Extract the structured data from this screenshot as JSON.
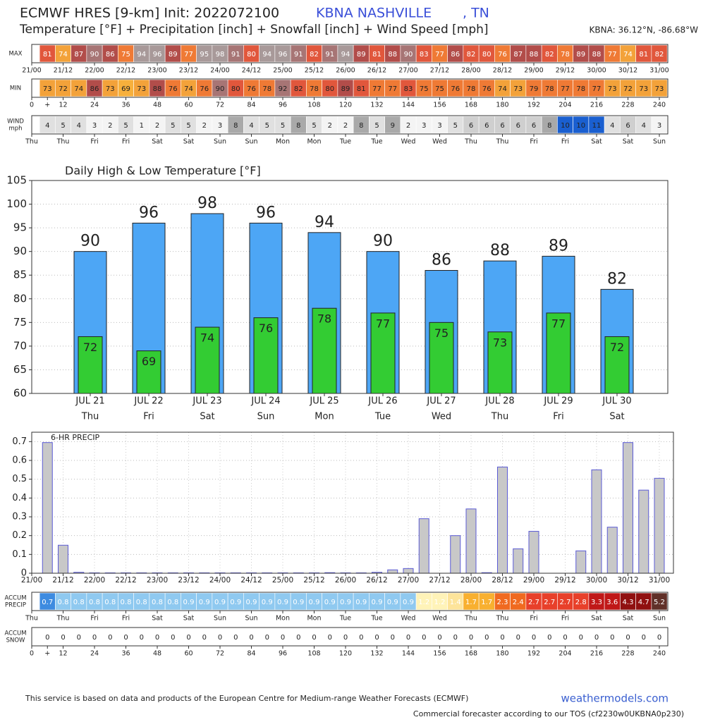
{
  "header": {
    "title": "ECMWF HRES [9-km] Init: 2022072100",
    "station": "KBNA NASHVILLE",
    "state": ", TN",
    "subtitle": "Temperature [°F] + Precipitation [inch] + Snowfall [inch] + Wind Speed [mph]",
    "location": "KBNA: 36.12°N, -86.68°W"
  },
  "chart_data": [
    {
      "type": "strip",
      "label": [
        "MAX"
      ],
      "text_color": "#ffffff",
      "values": [
        81,
        74,
        87,
        90,
        86,
        75,
        94,
        96,
        89,
        77,
        95,
        98,
        91,
        80,
        94,
        96,
        91,
        82,
        91,
        94,
        89,
        81,
        88,
        90,
        83,
        77,
        86,
        82,
        80,
        76,
        87,
        88,
        82,
        78,
        89,
        88,
        77,
        74,
        81,
        82
      ],
      "color_scale": [
        {
          "upto": 70,
          "color": "#f7b03c"
        },
        {
          "upto": 75,
          "color": "#f3a23a"
        },
        {
          "upto": 80,
          "color": "#ef7a35"
        },
        {
          "upto": 86,
          "color": "#e1573c"
        },
        {
          "upto": 90,
          "color": "#b24d4a"
        },
        {
          "upto": 93,
          "color": "#a77575"
        },
        {
          "color": "#a89999"
        }
      ],
      "xticks": [
        "21/00",
        "21/12",
        "22/00",
        "22/12",
        "23/00",
        "23/12",
        "24/00",
        "24/12",
        "25/00",
        "25/12",
        "26/00",
        "26/12",
        "27/00",
        "27/12",
        "28/00",
        "28/12",
        "29/00",
        "29/12",
        "30/00",
        "30/12",
        "31/00"
      ]
    },
    {
      "type": "strip",
      "label": [
        "MIN"
      ],
      "text_color": "#222222",
      "values": [
        73,
        72,
        74,
        86,
        73,
        69,
        73,
        88,
        76,
        74,
        76,
        90,
        80,
        76,
        78,
        92,
        82,
        78,
        80,
        89,
        81,
        77,
        77,
        83,
        75,
        75,
        76,
        78,
        76,
        74,
        73,
        79,
        78,
        77,
        78,
        77,
        73,
        72,
        73,
        73
      ],
      "color_scale": [
        {
          "upto": 70,
          "color": "#f7b03c"
        },
        {
          "upto": 75,
          "color": "#f3a23a"
        },
        {
          "upto": 80,
          "color": "#ef7a35"
        },
        {
          "upto": 86,
          "color": "#e1573c"
        },
        {
          "upto": 90,
          "color": "#b24d4a"
        },
        {
          "upto": 93,
          "color": "#a77575"
        },
        {
          "color": "#a89999"
        }
      ],
      "xticks": [
        "0",
        "+",
        "12",
        "24",
        "36",
        "48",
        "60",
        "72",
        "84",
        "96",
        "108",
        "120",
        "132",
        "144",
        "156",
        "168",
        "180",
        "192",
        "204",
        "216",
        "228",
        "240"
      ]
    },
    {
      "type": "strip",
      "label": [
        "WIND",
        "mph"
      ],
      "text_color": "#222222",
      "values": [
        4,
        5,
        4,
        3,
        2,
        5,
        1,
        2,
        5,
        5,
        2,
        3,
        8,
        4,
        5,
        5,
        8,
        5,
        2,
        2,
        8,
        5,
        9,
        2,
        3,
        3,
        5,
        6,
        6,
        6,
        6,
        6,
        8,
        10,
        10,
        11,
        4,
        6,
        4,
        3
      ],
      "color_scale": [
        {
          "upto": 4,
          "color": "#f4f4f4"
        },
        {
          "upto": 6,
          "color": "#e0e0e0"
        },
        {
          "upto": 8,
          "color": "#cfcfcf"
        },
        {
          "upto": 10,
          "color": "#a9a9a9"
        },
        {
          "color": "#1a5fd0"
        }
      ],
      "xticks": [
        "Thu",
        "Thu",
        "Fri",
        "Fri",
        "Sat",
        "Sat",
        "Sun",
        "Sun",
        "Mon",
        "Mon",
        "Tue",
        "Tue",
        "Wed",
        "Wed",
        "Thu",
        "Thu",
        "Fri",
        "Fri",
        "Sat",
        "Sat",
        "Sun"
      ]
    },
    {
      "type": "daily",
      "title": "Daily High & Low Temperature [°F]",
      "categories": [
        "JUL 21",
        "JUL 22",
        "JUL 23",
        "JUL 24",
        "JUL 25",
        "JUL 26",
        "JUL 27",
        "JUL 28",
        "JUL 29",
        "JUL 30"
      ],
      "subcategories": [
        "Thu",
        "Fri",
        "Sat",
        "Sun",
        "Mon",
        "Tue",
        "Wed",
        "Thu",
        "Fri",
        "Sat"
      ],
      "series": [
        {
          "color": "#4da6f5",
          "values": [
            90,
            96,
            98,
            96,
            94,
            90,
            86,
            88,
            89,
            82
          ]
        },
        {
          "color": "#33cc33",
          "values": [
            72,
            69,
            74,
            76,
            78,
            77,
            75,
            73,
            77,
            72
          ]
        }
      ],
      "ylim": [
        60,
        105
      ],
      "yticks": [
        60,
        65,
        70,
        75,
        80,
        85,
        90,
        95,
        100,
        105
      ],
      "grid": true
    },
    {
      "type": "bar",
      "title": "6-HR PRECIP",
      "color": "#c8c8c8",
      "edgecolor": "#5b5bd6",
      "values": [
        0.695,
        0.149,
        0.005,
        0.002,
        0.002,
        0.002,
        0.002,
        0.002,
        0.002,
        0.002,
        0.002,
        0.002,
        0.002,
        0.002,
        0.002,
        0.002,
        0.002,
        0.002,
        0.003,
        0.002,
        0.002,
        0.005,
        0.018,
        0.025,
        0.29,
        0,
        0.2,
        0.342,
        0.003,
        0.565,
        0.13,
        0.223,
        0,
        0,
        0.119,
        0.55,
        0.245,
        0.695,
        0.442,
        0.505
      ],
      "ylim": [
        0,
        0.75
      ],
      "yticks": [
        0,
        0.1,
        0.2,
        0.3,
        0.4,
        0.5,
        0.6,
        0.7
      ],
      "grid": true,
      "xticks": [
        "21/00",
        "21/12",
        "22/00",
        "22/12",
        "23/00",
        "23/12",
        "24/00",
        "24/12",
        "25/00",
        "25/12",
        "26/00",
        "26/12",
        "27/00",
        "27/12",
        "28/00",
        "28/12",
        "29/00",
        "29/12",
        "30/00",
        "30/12",
        "31/00"
      ]
    },
    {
      "type": "strip",
      "label": [
        "ACCUM",
        "PRECIP"
      ],
      "text_color": "#ffffff",
      "values": [
        0.7,
        0.8,
        0.8,
        0.8,
        0.8,
        0.8,
        0.8,
        0.8,
        0.8,
        0.9,
        0.9,
        0.9,
        0.9,
        0.9,
        0.9,
        0.9,
        0.9,
        0.9,
        0.9,
        0.9,
        0.9,
        0.9,
        0.9,
        0.9,
        1.2,
        1.2,
        1.4,
        1.7,
        1.7,
        2.3,
        2.4,
        2.7,
        2.7,
        2.7,
        2.8,
        3.3,
        3.6,
        4.3,
        4.7,
        5.2
      ],
      "color_scale": [
        {
          "upto": 0.75,
          "color": "#3d8be0"
        },
        {
          "upto": 1.0,
          "color": "#8fc9f0"
        },
        {
          "upto": 1.3,
          "color": "#fff3b8"
        },
        {
          "upto": 1.5,
          "color": "#fde49a"
        },
        {
          "upto": 2.0,
          "color": "#f8b030"
        },
        {
          "upto": 2.5,
          "color": "#f06a20"
        },
        {
          "upto": 3.0,
          "color": "#e8402a"
        },
        {
          "upto": 4.0,
          "color": "#c01818"
        },
        {
          "upto": 5.0,
          "color": "#901010"
        },
        {
          "color": "#603028"
        }
      ],
      "xticks": [
        "Thu",
        "Thu",
        "Fri",
        "Fri",
        "Sat",
        "Sat",
        "Sun",
        "Sun",
        "Mon",
        "Mon",
        "Tue",
        "Tue",
        "Wed",
        "Wed",
        "Thu",
        "Thu",
        "Fri",
        "Fri",
        "Sat",
        "Sat",
        "Sun"
      ]
    },
    {
      "type": "strip",
      "label": [
        "ACCUM",
        "SNOW"
      ],
      "text_color": "#222222",
      "values": [
        0,
        0,
        0,
        0,
        0,
        0,
        0,
        0,
        0,
        0,
        0,
        0,
        0,
        0,
        0,
        0,
        0,
        0,
        0,
        0,
        0,
        0,
        0,
        0,
        0,
        0,
        0,
        0,
        0,
        0,
        0,
        0,
        0,
        0,
        0,
        0,
        0,
        0,
        0,
        0
      ],
      "color_scale": [
        {
          "color": "#ffffff"
        }
      ],
      "xticks": [
        "0",
        "+",
        "12",
        "24",
        "36",
        "48",
        "60",
        "72",
        "84",
        "96",
        "108",
        "120",
        "132",
        "144",
        "156",
        "168",
        "180",
        "192",
        "204",
        "216",
        "228",
        "240"
      ]
    }
  ],
  "footer": {
    "note": "This service is based on data and products of the European Centre for Medium-range Weather Forecasts (ECMWF)",
    "site": "weathermodels.com",
    "tos": "Commercial forecaster according to our TOS (cf2230w0UKBNA0p230)"
  }
}
